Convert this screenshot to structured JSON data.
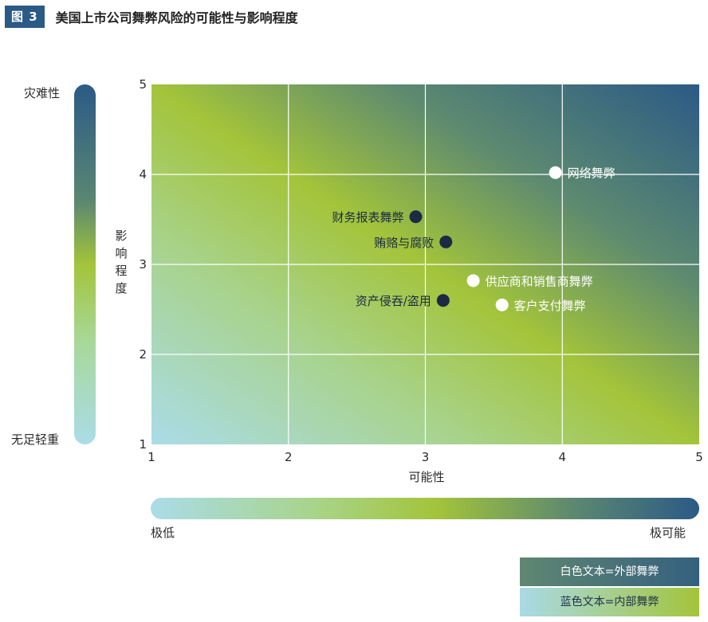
{
  "figure": {
    "badge": "图 3",
    "title": "美国上市公司舞弊风险的可能性与影响程度"
  },
  "impact_scale": {
    "top": "灾难性",
    "bottom": "无足轻重"
  },
  "likelihood_scale": {
    "left": "极低",
    "right": "极可能"
  },
  "legend": {
    "external": "白色文本=外部舞弊",
    "internal": "蓝色文本=内部舞弊"
  },
  "colors": {
    "external_point": "#ffffff",
    "internal_point": "#1c2a44",
    "external_label": "#ffffff",
    "internal_label": "#1c2a44",
    "grid": "#ffffff"
  },
  "chart_data": {
    "type": "scatter",
    "xlabel": "可能性",
    "ylabel": "影响程度",
    "xlim": [
      1,
      5
    ],
    "ylim": [
      1,
      5
    ],
    "xticks": [
      "1",
      "2",
      "3",
      "4",
      "5"
    ],
    "yticks": [
      "1",
      "2",
      "3",
      "4",
      "5"
    ],
    "grid": true,
    "points": [
      {
        "label": "网络舞弊",
        "x": 3.95,
        "y": 4.02,
        "kind": "external",
        "label_side": "right"
      },
      {
        "label": "财务报表舞弊",
        "x": 2.93,
        "y": 3.53,
        "kind": "internal",
        "label_side": "left"
      },
      {
        "label": "贿赂与腐败",
        "x": 3.15,
        "y": 3.25,
        "kind": "internal",
        "label_side": "left"
      },
      {
        "label": "供应商和销售商舞弊",
        "x": 3.35,
        "y": 2.82,
        "kind": "external",
        "label_side": "right"
      },
      {
        "label": "客户支付舞弊",
        "x": 3.56,
        "y": 2.55,
        "kind": "external",
        "label_side": "right"
      },
      {
        "label": "资产侵吞/盗用",
        "x": 3.13,
        "y": 2.6,
        "kind": "internal",
        "label_side": "left"
      }
    ]
  }
}
